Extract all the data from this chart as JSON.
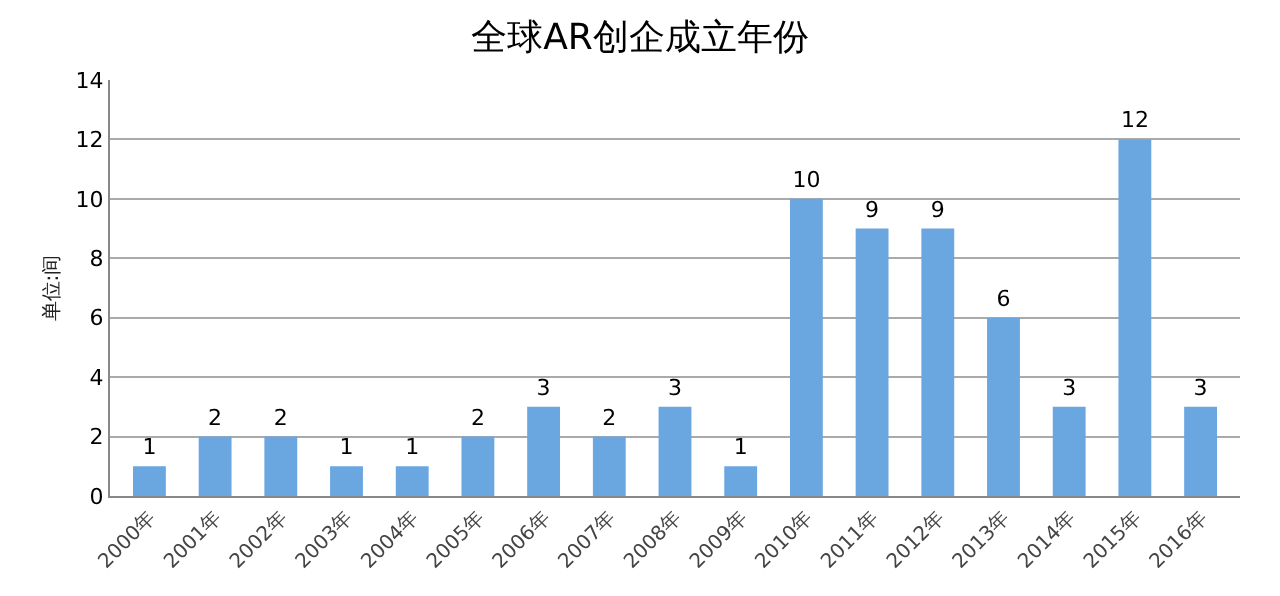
{
  "chart_data": {
    "type": "bar",
    "title": "全球AR创企成立年份",
    "ylabel": "单位:间",
    "categories": [
      "2000年",
      "2001年",
      "2002年",
      "2003年",
      "2004年",
      "2005年",
      "2006年",
      "2007年",
      "2008年",
      "2009年",
      "2010年",
      "2011年",
      "2012年",
      "2013年",
      "2014年",
      "2015年",
      "2016年"
    ],
    "values": [
      1,
      2,
      2,
      1,
      1,
      2,
      3,
      2,
      3,
      1,
      10,
      9,
      9,
      6,
      3,
      12,
      3
    ],
    "color": "#6aa6e0",
    "ylim": [
      0,
      14
    ],
    "yticks": [
      0,
      2,
      4,
      6,
      8,
      10,
      12,
      14
    ],
    "grid": "y",
    "data_labels": true,
    "legend": false
  }
}
